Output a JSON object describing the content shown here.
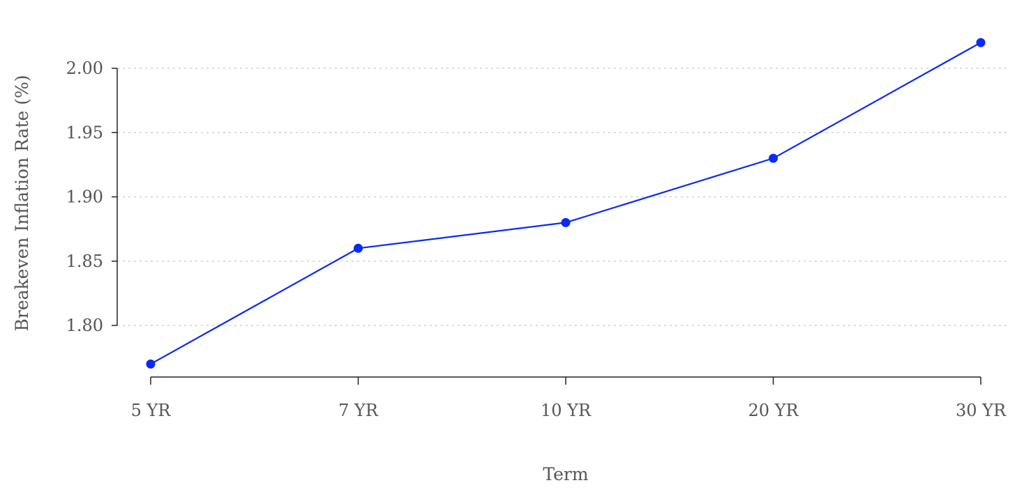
{
  "chart_data": {
    "type": "line",
    "xlabel": "Term",
    "ylabel": "Breakeven Inflation Rate (%)",
    "categories": [
      "5 YR",
      "7 YR",
      "10 YR",
      "20 YR",
      "30 YR"
    ],
    "series": [
      {
        "values": [
          1.77,
          1.86,
          1.88,
          1.93,
          2.02
        ]
      }
    ],
    "y_ticks": [
      1.8,
      1.85,
      1.9,
      1.95,
      2.0
    ],
    "y_tick_labels": [
      "1.80",
      "1.85",
      "1.90",
      "1.95",
      "2.00"
    ],
    "ylim": [
      1.77,
      2.02
    ],
    "grid": "horizontal-dotted",
    "color": "#0a2af5"
  }
}
